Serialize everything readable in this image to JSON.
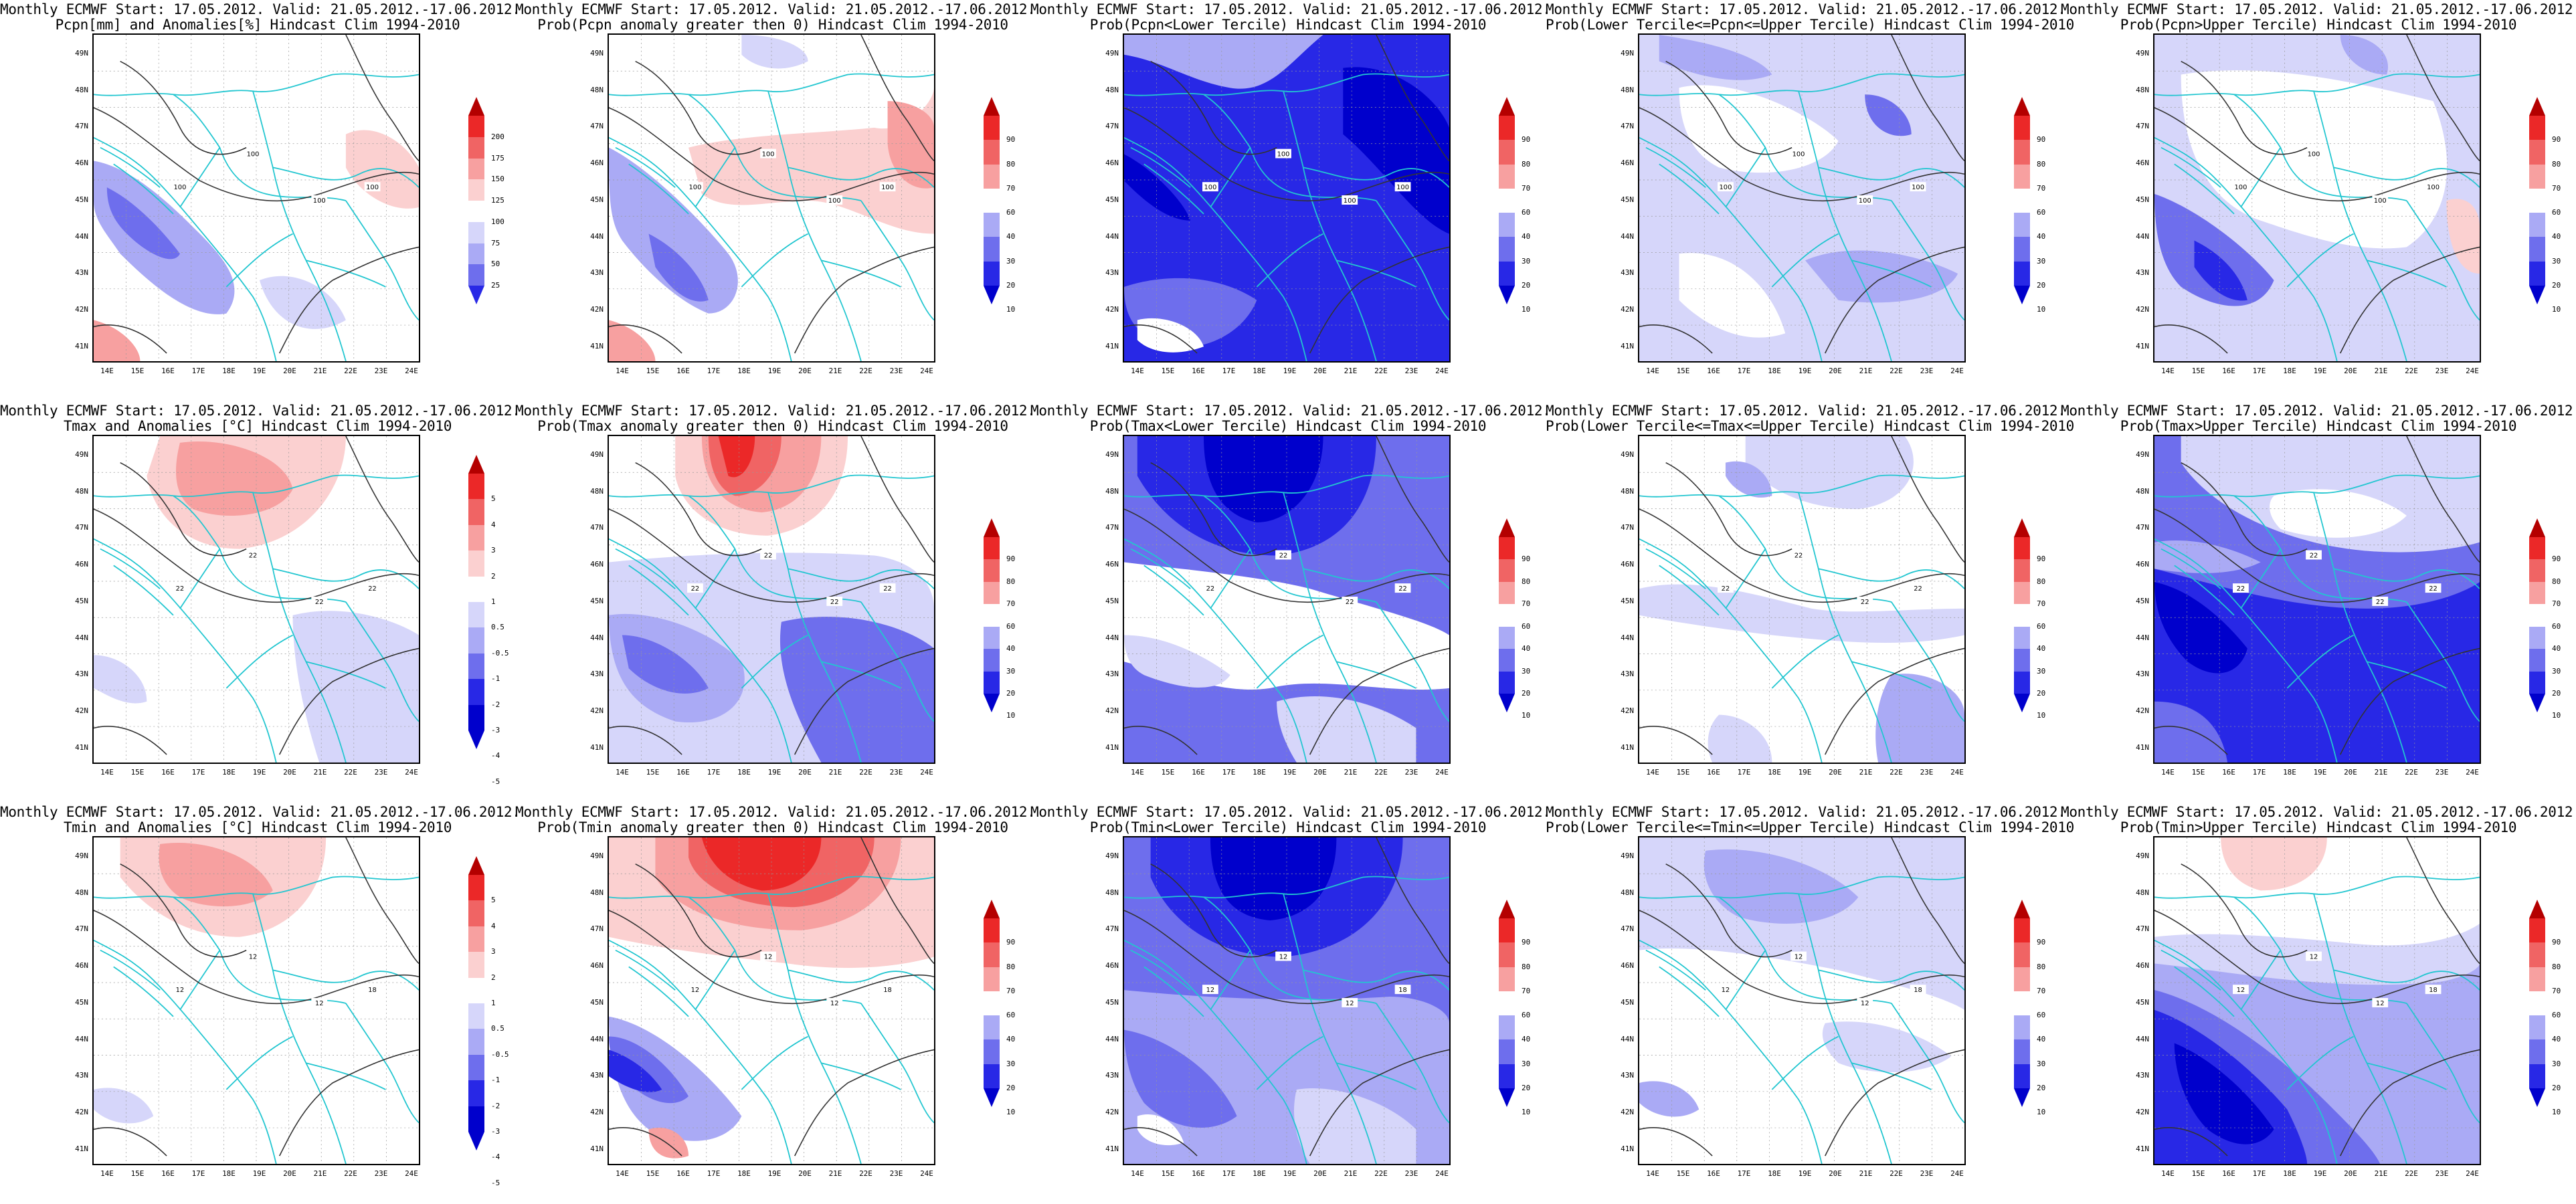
{
  "header": "Monthly ECMWF Start: 17.05.2012. Valid: 21.05.2012.-17.06.2012.",
  "lat_labels": [
    "49N",
    "48N",
    "47N",
    "46N",
    "45N",
    "44N",
    "43N",
    "42N",
    "41N"
  ],
  "lon_labels": [
    "14E",
    "15E",
    "16E",
    "17E",
    "18E",
    "19E",
    "20E",
    "21E",
    "22E",
    "23E",
    "24E"
  ],
  "colors": {
    "blue_dark": "#0000cc",
    "blue": "#2828e6",
    "blue_mid": "#6e6eed",
    "blue_light": "#aaaaf5",
    "blue_pale": "#d6d6fa",
    "red_dark": "#b40000",
    "red": "#eb2828",
    "red_mid": "#f06464",
    "red_light": "#f7a0a0",
    "red_pale": "#fbd0d0",
    "coast": "#22c6d0",
    "contour": "#333333"
  },
  "colorbars": {
    "pcpn_anom": {
      "ticks": [
        "200",
        "175",
        "150",
        "125",
        "100",
        "75",
        "50",
        "25"
      ]
    },
    "temp_anom": {
      "ticks": [
        "5",
        "4",
        "3",
        "2",
        "1",
        "0.5",
        "-0.5",
        "-1",
        "-2",
        "-3",
        "-4",
        "-5"
      ]
    },
    "prob": {
      "ticks": [
        "90",
        "80",
        "70",
        "60",
        "40",
        "30",
        "20",
        "10"
      ]
    }
  },
  "panels": [
    {
      "subtitle": "Pcpn[mm] and Anomalies[%] Hindcast Clim 1994-2010",
      "cbar": "pcpn_anom",
      "contour_labels": [
        "100",
        "100",
        "100",
        "100"
      ]
    },
    {
      "subtitle": "Prob(Pcpn anomaly greater then 0) Hindcast Clim 1994-2010",
      "cbar": "prob",
      "contour_labels": [
        "100",
        "100",
        "100",
        "100"
      ]
    },
    {
      "subtitle": "Prob(Pcpn<Lower Tercile) Hindcast Clim 1994-2010",
      "cbar": "prob",
      "contour_labels": [
        "100",
        "100",
        "100",
        "100"
      ]
    },
    {
      "subtitle": "Prob(Lower Tercile<=Pcpn<=Upper Tercile) Hindcast Clim 1994-2010",
      "cbar": "prob",
      "contour_labels": [
        "100",
        "100",
        "100",
        "100"
      ]
    },
    {
      "subtitle": "Prob(Pcpn>Upper Tercile) Hindcast Clim 1994-2010",
      "cbar": "prob",
      "contour_labels": [
        "100",
        "100",
        "100",
        "100"
      ]
    },
    {
      "subtitle": "Tmax and Anomalies [°C] Hindcast Clim 1994-2010",
      "cbar": "temp_anom",
      "contour_labels": [
        "22",
        "22",
        "22",
        "22"
      ]
    },
    {
      "subtitle": "Prob(Tmax anomaly greater then 0) Hindcast Clim 1994-2010",
      "cbar": "prob",
      "contour_labels": [
        "22",
        "22",
        "22",
        "22"
      ]
    },
    {
      "subtitle": "Prob(Tmax<Lower Tercile) Hindcast Clim 1994-2010",
      "cbar": "prob",
      "contour_labels": [
        "22",
        "22",
        "22",
        "22"
      ]
    },
    {
      "subtitle": "Prob(Lower Tercile<=Tmax<=Upper Tercile) Hindcast Clim 1994-2010",
      "cbar": "prob",
      "contour_labels": [
        "22",
        "22",
        "22",
        "22"
      ]
    },
    {
      "subtitle": "Prob(Tmax>Upper Tercile) Hindcast Clim 1994-2010",
      "cbar": "prob",
      "contour_labels": [
        "22",
        "22",
        "22",
        "22"
      ]
    },
    {
      "subtitle": "Tmin and Anomalies [°C] Hindcast Clim 1994-2010",
      "cbar": "temp_anom",
      "contour_labels": [
        "12",
        "12",
        "12",
        "18"
      ]
    },
    {
      "subtitle": "Prob(Tmin anomaly greater then 0) Hindcast Clim 1994-2010",
      "cbar": "prob",
      "contour_labels": [
        "12",
        "12",
        "12",
        "18"
      ]
    },
    {
      "subtitle": "Prob(Tmin<Lower Tercile) Hindcast Clim 1994-2010",
      "cbar": "prob",
      "contour_labels": [
        "12",
        "12",
        "12",
        "18"
      ]
    },
    {
      "subtitle": "Prob(Lower Tercile<=Tmin<=Upper Tercile) Hindcast Clim 1994-2010",
      "cbar": "prob",
      "contour_labels": [
        "12",
        "12",
        "12",
        "18"
      ]
    },
    {
      "subtitle": "Prob(Tmin>Upper Tercile) Hindcast Clim 1994-2010",
      "cbar": "prob",
      "contour_labels": [
        "12",
        "12",
        "12",
        "18"
      ]
    }
  ]
}
